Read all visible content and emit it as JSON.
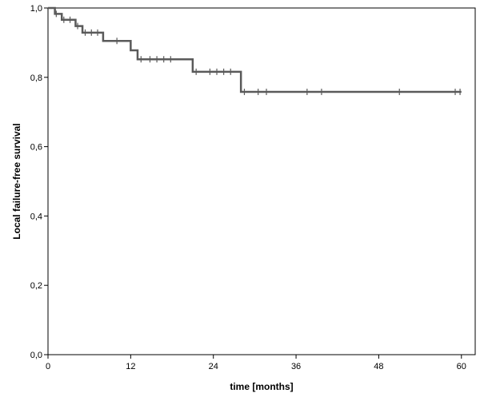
{
  "chart_data": {
    "type": "line",
    "title": "",
    "xlabel": "time [months]",
    "ylabel": "Local failure-free survival",
    "xlim": [
      0,
      62
    ],
    "ylim": [
      0,
      1
    ],
    "grid": false,
    "x_ticks": [
      0,
      12,
      24,
      36,
      48,
      60
    ],
    "x_tick_labels": [
      "0",
      "12",
      "24",
      "36",
      "48",
      "60"
    ],
    "y_ticks": [
      0,
      0.2,
      0.4,
      0.6,
      0.8,
      1.0
    ],
    "y_tick_labels": [
      "0,0",
      "0,2",
      "0,4",
      "0,6",
      "0,8",
      "1,0"
    ],
    "series": [
      {
        "step": [
          [
            0,
            1.0
          ],
          [
            1,
            0.983
          ],
          [
            2,
            0.966
          ],
          [
            4,
            0.948
          ],
          [
            5,
            0.929
          ],
          [
            8,
            0.905
          ],
          [
            12,
            0.878
          ],
          [
            13,
            0.852
          ],
          [
            21,
            0.816
          ],
          [
            28,
            0.758
          ],
          [
            60,
            0.758
          ]
        ],
        "censored": [
          [
            1.2,
            0.983
          ],
          [
            2.3,
            0.966
          ],
          [
            3.2,
            0.966
          ],
          [
            4.3,
            0.948
          ],
          [
            5.4,
            0.929
          ],
          [
            6.3,
            0.929
          ],
          [
            7.2,
            0.929
          ],
          [
            10.0,
            0.905
          ],
          [
            13.5,
            0.852
          ],
          [
            14.8,
            0.852
          ],
          [
            15.8,
            0.852
          ],
          [
            16.8,
            0.852
          ],
          [
            17.8,
            0.852
          ],
          [
            21.5,
            0.816
          ],
          [
            23.5,
            0.816
          ],
          [
            24.5,
            0.816
          ],
          [
            25.5,
            0.816
          ],
          [
            26.5,
            0.816
          ],
          [
            28.5,
            0.758
          ],
          [
            30.5,
            0.758
          ],
          [
            31.7,
            0.758
          ],
          [
            37.6,
            0.758
          ],
          [
            39.7,
            0.758
          ],
          [
            51.0,
            0.758
          ],
          [
            59.1,
            0.758
          ],
          [
            59.8,
            0.758
          ]
        ]
      }
    ],
    "colors": {
      "line": "#5a5a5a",
      "axis": "#000000"
    }
  }
}
